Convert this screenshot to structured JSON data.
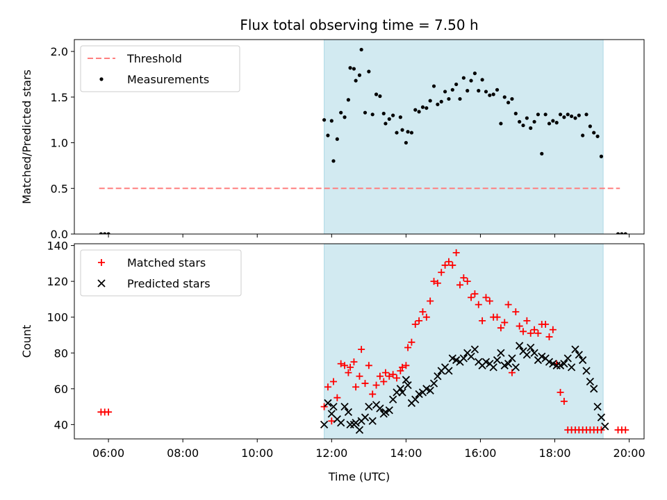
{
  "chart_data": {
    "type": "scatter",
    "title": "Flux total observing time = 7.50 h",
    "xlabel": "Time (UTC)",
    "x_ticks": [
      "06:00",
      "08:00",
      "10:00",
      "12:00",
      "14:00",
      "16:00",
      "18:00",
      "20:00"
    ],
    "x_tick_hours": [
      6,
      8,
      10,
      12,
      14,
      16,
      18,
      20
    ],
    "xlim_hours": [
      5.083,
      20.4
    ],
    "shaded_span_hours": [
      11.8,
      19.3
    ],
    "shaded_color": "#add8e6",
    "panels": [
      {
        "ylabel": "Matched/Predicted stars",
        "ylim": [
          0,
          2.13
        ],
        "y_ticks": [
          "0.0",
          "0.5",
          "1.0",
          "1.5",
          "2.0"
        ],
        "y_tick_values": [
          0,
          0.5,
          1.0,
          1.5,
          2.0
        ],
        "legend_position": "upper left",
        "series": [
          {
            "name": "Threshold",
            "kind": "dashed-line",
            "color": "#ff7f7f",
            "x": [
              5.75,
              19.75
            ],
            "y": [
              0.5,
              0.5
            ]
          },
          {
            "name": "Measurements",
            "kind": "dot",
            "color": "#000000",
            "x": [
              5.8,
              5.9,
              6.0,
              11.8,
              11.9,
              12.0,
              12.05,
              12.15,
              12.25,
              12.35,
              12.45,
              12.5,
              12.6,
              12.65,
              12.75,
              12.8,
              12.9,
              13.0,
              13.1,
              13.2,
              13.3,
              13.4,
              13.45,
              13.55,
              13.65,
              13.75,
              13.85,
              13.9,
              14.0,
              14.05,
              14.15,
              14.25,
              14.35,
              14.45,
              14.55,
              14.65,
              14.75,
              14.85,
              14.95,
              15.05,
              15.15,
              15.25,
              15.35,
              15.45,
              15.55,
              15.65,
              15.75,
              15.85,
              15.95,
              16.05,
              16.15,
              16.25,
              16.35,
              16.45,
              16.55,
              16.65,
              16.75,
              16.85,
              16.95,
              17.05,
              17.15,
              17.25,
              17.35,
              17.45,
              17.55,
              17.65,
              17.75,
              17.85,
              17.95,
              18.05,
              18.15,
              18.25,
              18.35,
              18.45,
              18.55,
              18.65,
              18.75,
              18.85,
              18.95,
              19.05,
              19.15,
              19.25,
              19.7,
              19.8,
              19.9
            ],
            "y": [
              0.0,
              0.0,
              0.0,
              1.25,
              1.08,
              1.24,
              0.8,
              1.04,
              1.33,
              1.28,
              1.47,
              1.82,
              1.81,
              1.68,
              1.74,
              2.02,
              1.33,
              1.78,
              1.31,
              1.53,
              1.51,
              1.32,
              1.21,
              1.26,
              1.3,
              1.11,
              1.28,
              1.14,
              1.0,
              1.12,
              1.11,
              1.36,
              1.34,
              1.39,
              1.38,
              1.46,
              1.62,
              1.42,
              1.45,
              1.56,
              1.48,
              1.58,
              1.64,
              1.48,
              1.71,
              1.57,
              1.68,
              1.76,
              1.57,
              1.69,
              1.56,
              1.52,
              1.53,
              1.58,
              1.21,
              1.5,
              1.44,
              1.48,
              1.32,
              1.23,
              1.19,
              1.27,
              1.16,
              1.23,
              1.31,
              0.88,
              1.31,
              1.21,
              1.24,
              1.22,
              1.31,
              1.28,
              1.31,
              1.29,
              1.27,
              1.3,
              1.08,
              1.31,
              1.18,
              1.11,
              1.07,
              0.85,
              0.0,
              0.0,
              0.0
            ]
          }
        ]
      },
      {
        "ylabel": "Count",
        "ylim": [
          32,
          141
        ],
        "y_ticks": [
          "40",
          "60",
          "80",
          "100",
          "120",
          "140"
        ],
        "y_tick_values": [
          40,
          60,
          80,
          100,
          120,
          140
        ],
        "legend_position": "upper left",
        "series": [
          {
            "name": "Matched stars",
            "kind": "plus",
            "color": "#ff0000",
            "x": [
              5.8,
              5.9,
              6.0,
              11.8,
              11.9,
              12.0,
              12.05,
              12.15,
              12.25,
              12.35,
              12.45,
              12.5,
              12.6,
              12.65,
              12.75,
              12.8,
              12.9,
              13.0,
              13.1,
              13.2,
              13.3,
              13.4,
              13.45,
              13.55,
              13.65,
              13.75,
              13.85,
              13.9,
              14.0,
              14.05,
              14.15,
              14.25,
              14.35,
              14.45,
              14.55,
              14.65,
              14.75,
              14.85,
              14.95,
              15.05,
              15.15,
              15.25,
              15.35,
              15.45,
              15.55,
              15.65,
              15.75,
              15.85,
              15.95,
              16.05,
              16.15,
              16.25,
              16.35,
              16.45,
              16.55,
              16.65,
              16.75,
              16.85,
              16.95,
              17.05,
              17.15,
              17.25,
              17.35,
              17.45,
              17.55,
              17.65,
              17.75,
              17.85,
              17.95,
              18.05,
              18.15,
              18.25,
              18.35,
              18.45,
              18.55,
              18.65,
              18.75,
              18.85,
              18.95,
              19.05,
              19.15,
              19.25,
              19.7,
              19.8,
              19.9
            ],
            "y": [
              47,
              47,
              47,
              50,
              61,
              42,
              64,
              55,
              74,
              73,
              69,
              72,
              75,
              61,
              67,
              82,
              63,
              73,
              57,
              62,
              67,
              64,
              69,
              67,
              68,
              66,
              70,
              72,
              73,
              83,
              86,
              96,
              98,
              103,
              100,
              109,
              120,
              119,
              125,
              129,
              131,
              129,
              136,
              118,
              122,
              120,
              111,
              113,
              107,
              98,
              111,
              109,
              100,
              100,
              94,
              97,
              107,
              69,
              103,
              95,
              92,
              98,
              91,
              93,
              91,
              96,
              96,
              89,
              93,
              74,
              58,
              53,
              37,
              37,
              37,
              37,
              37,
              37,
              37,
              37,
              37,
              37,
              37,
              37,
              37
            ],
            "y_note": ""
          },
          {
            "name": "Predicted stars",
            "kind": "cross",
            "color": "#000000",
            "x": [
              11.8,
              11.9,
              12.0,
              12.05,
              12.15,
              12.25,
              12.35,
              12.45,
              12.5,
              12.6,
              12.65,
              12.75,
              12.8,
              12.9,
              13.0,
              13.1,
              13.2,
              13.3,
              13.4,
              13.45,
              13.55,
              13.65,
              13.75,
              13.85,
              13.9,
              14.0,
              14.05,
              14.15,
              14.25,
              14.35,
              14.45,
              14.55,
              14.65,
              14.75,
              14.85,
              14.95,
              15.05,
              15.15,
              15.25,
              15.35,
              15.45,
              15.55,
              15.65,
              15.75,
              15.85,
              15.95,
              16.05,
              16.15,
              16.25,
              16.35,
              16.45,
              16.55,
              16.65,
              16.75,
              16.85,
              16.95,
              17.05,
              17.15,
              17.25,
              17.35,
              17.45,
              17.55,
              17.65,
              17.75,
              17.85,
              17.95,
              18.05,
              18.15,
              18.25,
              18.35,
              18.45,
              18.55,
              18.65,
              18.75,
              18.85,
              18.95,
              19.05,
              19.15,
              19.25,
              19.35
            ],
            "y": [
              40,
              52,
              46,
              50,
              43,
              41,
              50,
              47,
              40,
              40,
              41,
              37,
              42,
              44,
              50,
              42,
              51,
              49,
              46,
              47,
              48,
              54,
              58,
              60,
              58,
              65,
              62,
              52,
              54,
              57,
              58,
              60,
              59,
              63,
              67,
              70,
              72,
              70,
              77,
              76,
              75,
              77,
              80,
              78,
              82,
              75,
              73,
              75,
              74,
              72,
              76,
              80,
              73,
              74,
              77,
              72,
              84,
              81,
              79,
              83,
              80,
              76,
              78,
              77,
              75,
              74,
              73,
              73,
              74,
              77,
              72,
              82,
              79,
              76,
              70,
              64,
              60,
              50,
              44,
              39
            ],
            "y_note": ""
          }
        ]
      }
    ]
  }
}
